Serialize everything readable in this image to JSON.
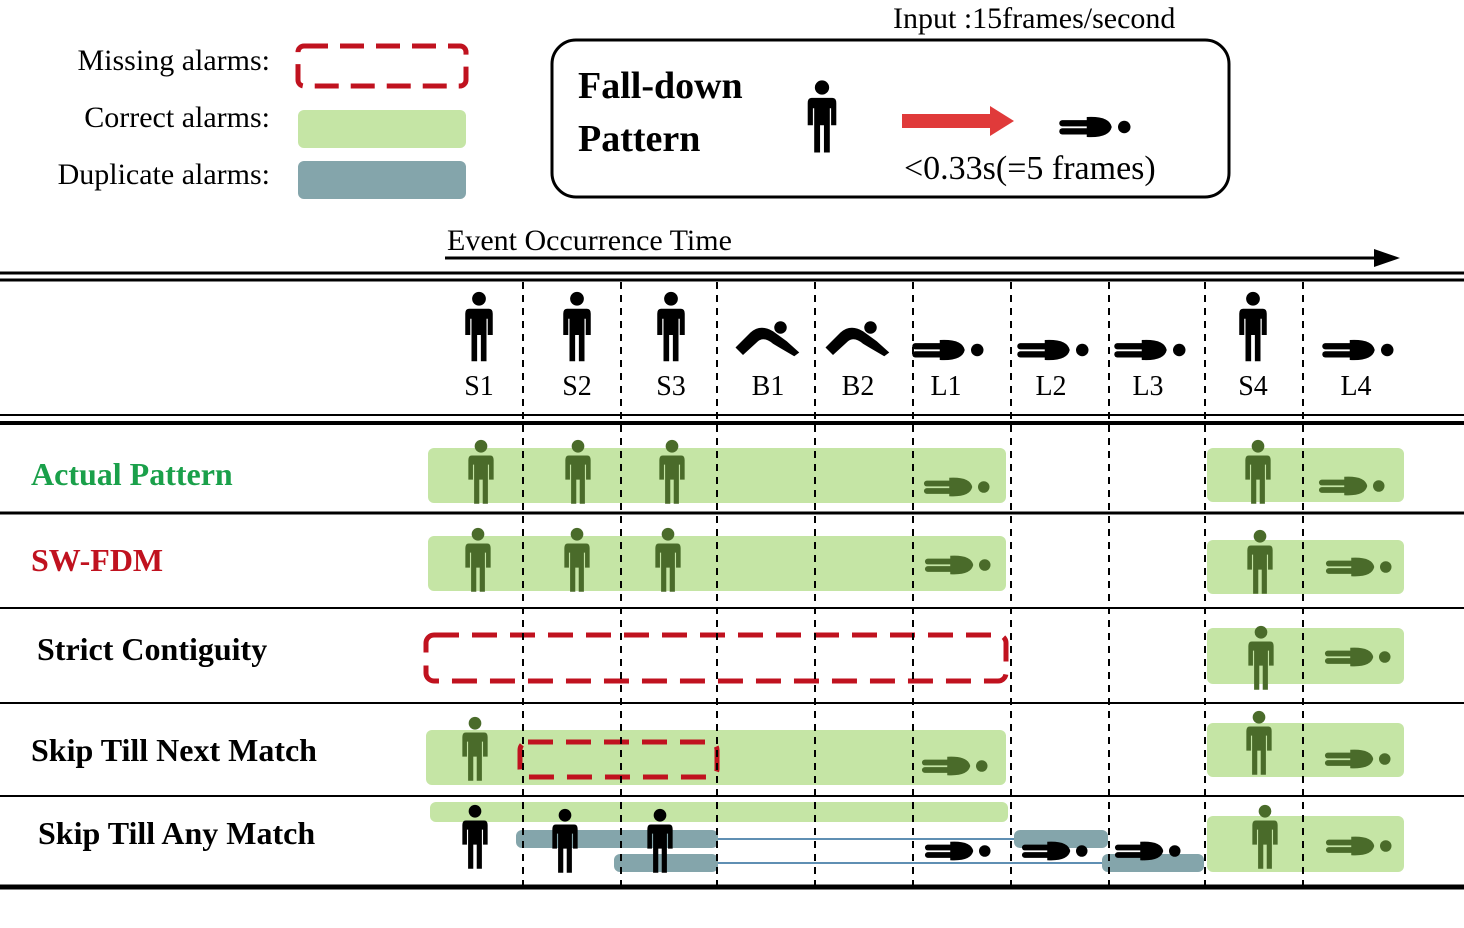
{
  "legend": {
    "missing": "Missing alarms:",
    "correct": "Correct alarms:",
    "duplicate": "Duplicate alarms:"
  },
  "pattern_box": {
    "input_rate": "Input :15frames/second",
    "title_line1": "Fall-down",
    "title_line2": "Pattern",
    "time_limit": "<0.33s(=5 frames)"
  },
  "timeline": {
    "label": "Event Occurrence Time"
  },
  "events": [
    {
      "label": "S1",
      "pose": "standing"
    },
    {
      "label": "S2",
      "pose": "standing"
    },
    {
      "label": "S3",
      "pose": "standing"
    },
    {
      "label": "B1",
      "pose": "bending"
    },
    {
      "label": "B2",
      "pose": "bending"
    },
    {
      "label": "L1",
      "pose": "lying"
    },
    {
      "label": "L2",
      "pose": "lying"
    },
    {
      "label": "L3",
      "pose": "lying"
    },
    {
      "label": "S4",
      "pose": "standing"
    },
    {
      "label": "L4",
      "pose": "lying"
    }
  ],
  "rows": [
    {
      "label": "Actual Pattern",
      "color": "#1aa04a"
    },
    {
      "label": "SW-FDM",
      "color": "#c0121f"
    },
    {
      "label": "Strict Contiguity",
      "color": "#000000"
    },
    {
      "label": "Skip Till Next Match",
      "color": "#000000"
    },
    {
      "label": "Skip Till Any Match",
      "color": "#000000"
    }
  ],
  "colors": {
    "correct": "#c5e5a5",
    "duplicate": "#84a5ab",
    "missing": "#c0121f",
    "figure_green": "#4a6b2a",
    "arrow_red": "#e03a3a",
    "connector": "#2a6a9a"
  }
}
